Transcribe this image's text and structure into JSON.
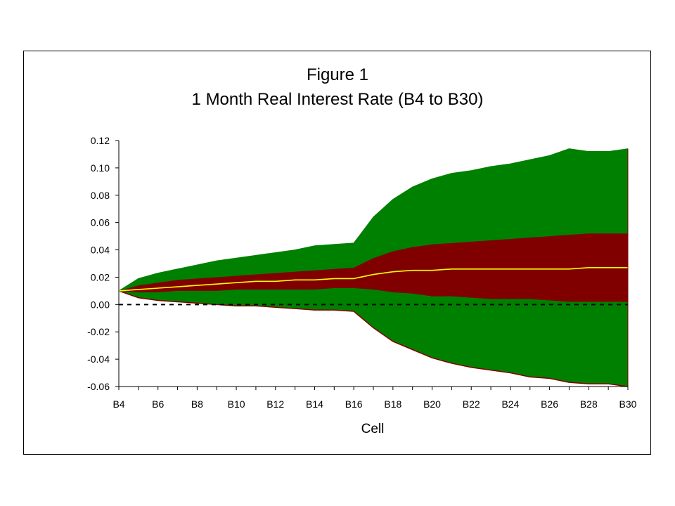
{
  "chart_data": {
    "type": "area",
    "title": "Figure 1",
    "subtitle": "1 Month Real Interest Rate (B4 to B30)",
    "xlabel": "Cell",
    "ylabel": "",
    "ylim": [
      -0.06,
      0.12
    ],
    "yticks": [
      "0.12",
      "0.10",
      "0.08",
      "0.06",
      "0.04",
      "0.02",
      "0.00",
      "-0.02",
      "-0.04",
      "-0.06"
    ],
    "ytick_values": [
      0.12,
      0.1,
      0.08,
      0.06,
      0.04,
      0.02,
      0.0,
      -0.02,
      -0.04,
      -0.06
    ],
    "categories": [
      "B4",
      "B5",
      "B6",
      "B7",
      "B8",
      "B9",
      "B10",
      "B11",
      "B12",
      "B13",
      "B14",
      "B15",
      "B16",
      "B17",
      "B18",
      "B19",
      "B20",
      "B21",
      "B22",
      "B23",
      "B24",
      "B25",
      "B26",
      "B27",
      "B28",
      "B29",
      "B30"
    ],
    "xtick_labels": [
      "B4",
      "B6",
      "B8",
      "B10",
      "B12",
      "B14",
      "B16",
      "B18",
      "B20",
      "B22",
      "B24",
      "B26",
      "B28",
      "B30"
    ],
    "grid": false,
    "legend": "none",
    "zero_line": "dashed",
    "series": [
      {
        "color": "#008000",
        "upper": [
          0.01,
          0.019,
          0.023,
          0.026,
          0.029,
          0.032,
          0.034,
          0.036,
          0.038,
          0.04,
          0.043,
          0.044,
          0.045,
          0.064,
          0.077,
          0.086,
          0.092,
          0.096,
          0.098,
          0.101,
          0.103,
          0.106,
          0.109,
          0.114,
          0.112,
          0.112,
          0.114
        ],
        "lower": [
          0.01,
          0.005,
          0.003,
          0.002,
          0.001,
          0.0,
          -0.001,
          -0.001,
          -0.002,
          -0.003,
          -0.004,
          -0.004,
          -0.005,
          -0.017,
          -0.027,
          -0.033,
          -0.039,
          -0.043,
          -0.046,
          -0.048,
          -0.05,
          -0.053,
          -0.054,
          -0.057,
          -0.058,
          -0.058,
          -0.06
        ]
      },
      {
        "color": "#800000",
        "upper": [
          0.01,
          0.014,
          0.016,
          0.018,
          0.019,
          0.02,
          0.021,
          0.022,
          0.023,
          0.024,
          0.025,
          0.026,
          0.027,
          0.034,
          0.039,
          0.042,
          0.044,
          0.045,
          0.046,
          0.047,
          0.048,
          0.049,
          0.05,
          0.051,
          0.052,
          0.052,
          0.052
        ],
        "lower": [
          0.01,
          0.009,
          0.009,
          0.01,
          0.01,
          0.01,
          0.011,
          0.011,
          0.011,
          0.011,
          0.011,
          0.012,
          0.012,
          0.011,
          0.009,
          0.008,
          0.006,
          0.006,
          0.005,
          0.004,
          0.004,
          0.004,
          0.003,
          0.002,
          0.002,
          0.002,
          0.002
        ]
      },
      {
        "color": "#ffff00",
        "values": [
          0.01,
          0.011,
          0.012,
          0.013,
          0.014,
          0.015,
          0.016,
          0.017,
          0.017,
          0.018,
          0.018,
          0.019,
          0.019,
          0.022,
          0.024,
          0.025,
          0.025,
          0.026,
          0.026,
          0.026,
          0.026,
          0.026,
          0.026,
          0.026,
          0.027,
          0.027,
          0.027
        ]
      }
    ]
  }
}
